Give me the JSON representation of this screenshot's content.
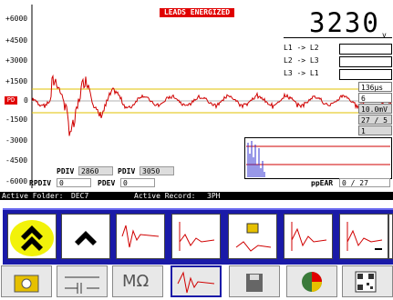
{
  "banner": "LEADS ENERGIZED",
  "reading": {
    "value": "3230",
    "unit": "v"
  },
  "y_axis": {
    "ticks": [
      "+6000",
      "+4500",
      "+3000",
      "+1500",
      "PD",
      "-1500",
      "-3000",
      "-4500",
      "-6000"
    ],
    "zero_label": "0"
  },
  "phases": [
    {
      "label": "L1 -> L2"
    },
    {
      "label": "L2 -> L3"
    },
    {
      "label": "L3 -> L1"
    }
  ],
  "params": [
    "136µs",
    "6",
    "10.0mV",
    "27 / 5",
    "1"
  ],
  "pd": {
    "pdiv_label": "PDIV",
    "pdiv_left": "2860",
    "pdiv_right": "3050",
    "rpdiv_label": "RPDIV",
    "rpdiv_value": "0",
    "pdev_label": "PDEV",
    "pdev_value": "0",
    "ppear_label": "ppEAR",
    "ppear_value": "0 / 27"
  },
  "status": {
    "folder_label": "Active Folder:",
    "folder_value": "DEC7",
    "record_label": "Active Record:",
    "record_value": "3PH"
  },
  "toolbar_icons": [
    "double-up-chevron-icon",
    "up-chevron-icon",
    "waveform-icon",
    "waveform-decay-icon",
    "unlock-waveform-icon",
    "waveform-burst-icon",
    "zoom-out-waveform-icon",
    "zoom-in-waveform-icon"
  ],
  "bottom_icons": [
    "meter-icon",
    "circuit-icon",
    "megohm-icon",
    "waveform-icon",
    "floppy-disk-icon",
    "pie-chart-icon",
    "qr-code-icon"
  ],
  "bottom_text": {
    "megohm": "MΩ"
  },
  "colors": {
    "trace": "#d00000",
    "baseline": "#e0c000",
    "banner": "#e00000",
    "popup": "#1a1aa8",
    "highlight": "#f2f20a"
  }
}
